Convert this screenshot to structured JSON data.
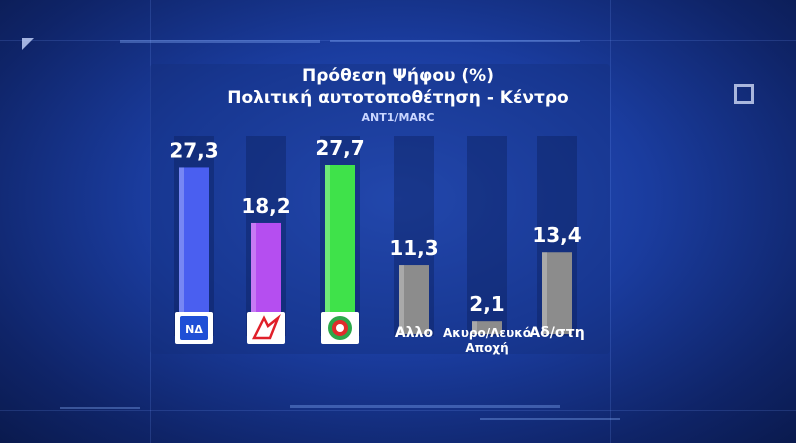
{
  "chart_data": {
    "type": "bar",
    "title": "Πρόθεση Ψήφου (%)",
    "subtitle": "Πολιτική αυτοτοποθέτηση - Κέντρο",
    "source": "ANT1/MARC",
    "categories": [
      "ΝΔ",
      "ΣΥΡΙΖΑ",
      "ΠΑΣΟΚ",
      "Αλλο",
      "Ακυρο/Λευκό Αποχή",
      "Αδ/στη"
    ],
    "values": [
      27.3,
      18.2,
      27.7,
      11.3,
      2.1,
      13.4
    ],
    "value_labels": [
      "27,3",
      "18,2",
      "27,7",
      "11,3",
      "2,1",
      "13,4"
    ],
    "text_labels": [
      "",
      "",
      "",
      "Αλλο",
      "Ακυρο/Λευκό",
      "Αδ/στη"
    ],
    "text_labels_line2": [
      "",
      "",
      "",
      "",
      "Αποχή",
      ""
    ],
    "logo_icons": [
      "nd-logo-icon",
      "syriza-logo-icon",
      "pasok-logo-icon",
      "",
      "",
      ""
    ],
    "colors": [
      "#4a5ff0",
      "#b54ef0",
      "#3fe24a",
      "#8c8c8c",
      "#8c8c8c",
      "#8c8c8c"
    ],
    "ylim": [
      0,
      30
    ],
    "grid": false,
    "xlabel": "",
    "ylabel": ""
  }
}
